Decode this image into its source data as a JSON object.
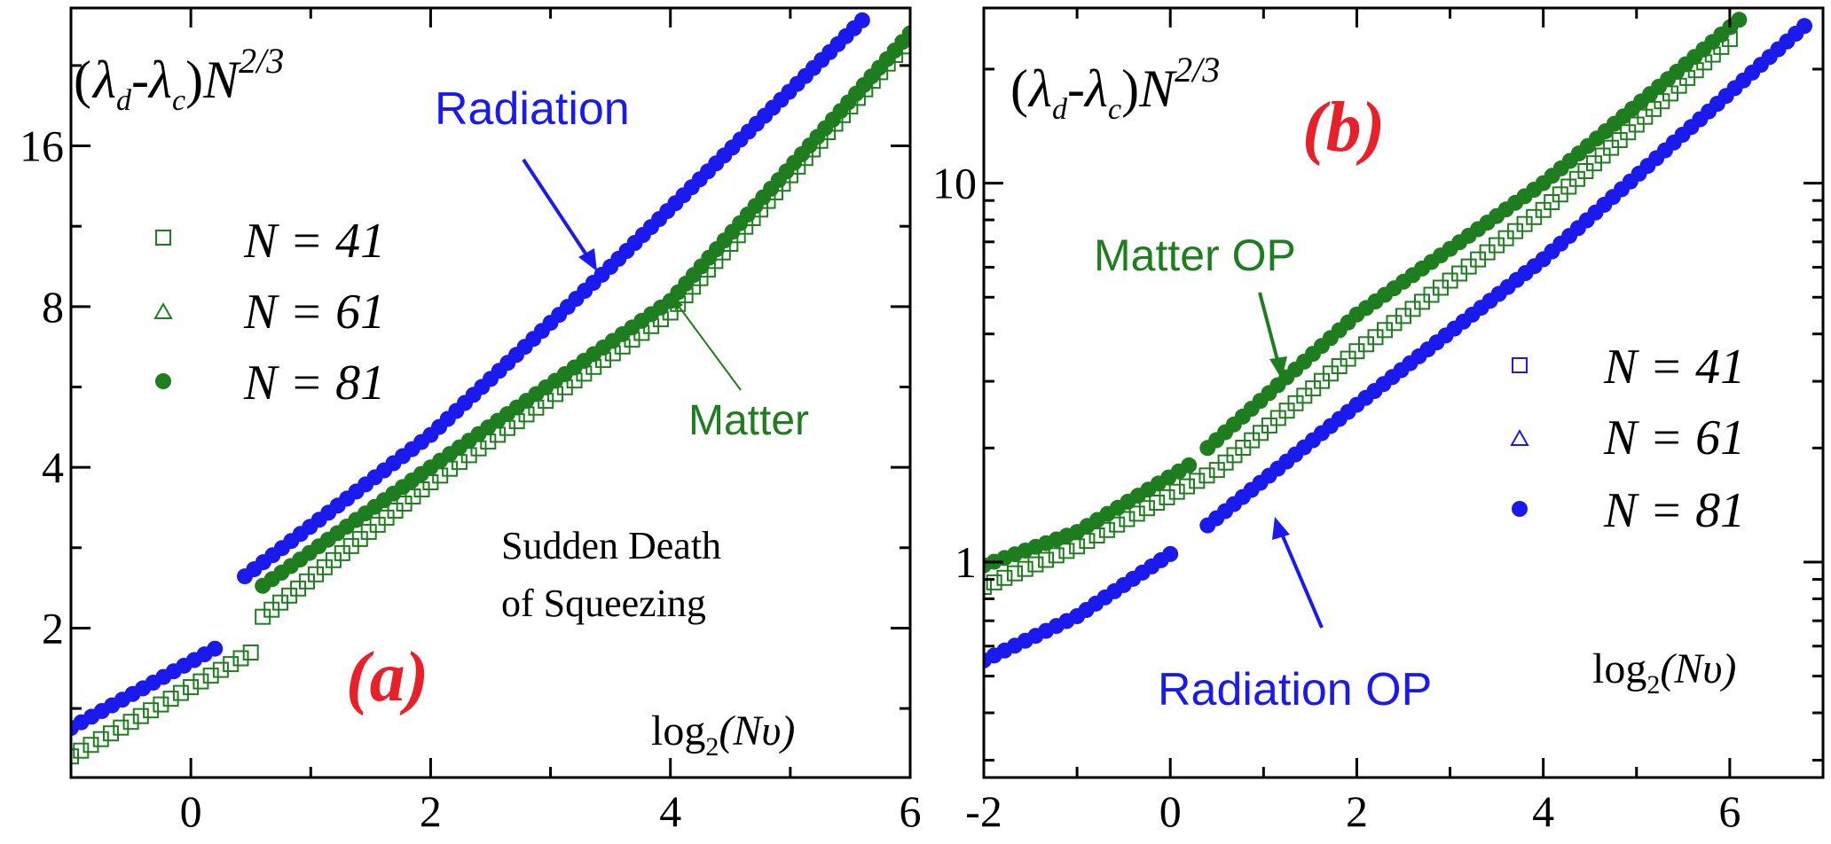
{
  "figure": {
    "colors": {
      "radiation": "#1a1aee",
      "matter": "#1e7d1e",
      "panel_label": "#e8202a",
      "axis": "#000000"
    }
  },
  "chart_data": [
    {
      "type": "scatter",
      "panel_label": "(a)",
      "y_scale": "log2",
      "xlim": [
        -1,
        6
      ],
      "ylim": [
        1.05,
        29
      ],
      "x_ticks": [
        0,
        2,
        4,
        6
      ],
      "x_tick_labels": [
        "0",
        "2",
        "4",
        "6"
      ],
      "y_ticks": [
        2,
        4,
        8,
        16
      ],
      "y_tick_labels": [
        "2",
        "4",
        "8",
        "16"
      ],
      "ylabel": {
        "lambda": "λ",
        "sub_d": "d",
        "sub_c": "c",
        "minus": "-",
        "N": "N",
        "exp": "2/3"
      },
      "xlabel": {
        "log": "log",
        "sub": "2",
        "arg": "(Nυ)"
      },
      "legend": {
        "placement": "top-left",
        "entries": [
          {
            "marker": "open-square",
            "color": "#1e7d1e",
            "label": "N = 41"
          },
          {
            "marker": "open-triangle",
            "color": "#1e7d1e",
            "label": "N = 61"
          },
          {
            "marker": "filled-circle",
            "color": "#1e7d1e",
            "label": "N = 81"
          }
        ]
      },
      "annotations": [
        {
          "text": "Radiation",
          "color": "#1a1aee"
        },
        {
          "text": "Matter",
          "color": "#1e7d1e"
        },
        {
          "text": "Sudden Death",
          "color": "#000000"
        },
        {
          "text": "of Squeezing",
          "color": "#000000"
        }
      ],
      "series": [
        {
          "name": "Radiation",
          "color": "#1a1aee",
          "marker": "filled-circle",
          "segments": [
            {
              "x": [
                -1.0,
                0.2
              ],
              "y": [
                1.3,
                1.83
              ]
            },
            {
              "x": [
                0.45,
                2.0,
                3.5,
                5.6
              ],
              "y": [
                2.5,
                4.6,
                9.5,
                27.5
              ]
            }
          ]
        },
        {
          "name": "Matter",
          "color": "#1e7d1e",
          "marker": "filled-circle",
          "segments": [
            {
              "x": [
                0.6,
                2.0,
                4.0,
                6.0
              ],
              "y": [
                2.4,
                4.0,
                8.2,
                26.0
              ]
            }
          ]
        },
        {
          "name": "Matter N=41",
          "color": "#1e7d1e",
          "marker": "open-square",
          "segments": [
            {
              "x": [
                -1.0,
                0.0,
                0.5
              ],
              "y": [
                1.15,
                1.55,
                1.8
              ]
            },
            {
              "x": [
                0.6,
                2.0,
                4.0,
                6.0
              ],
              "y": [
                2.1,
                3.75,
                7.8,
                25.5
              ]
            }
          ]
        }
      ]
    },
    {
      "type": "scatter",
      "panel_label": "(b)",
      "y_scale": "log10",
      "xlim": [
        -2,
        7
      ],
      "ylim": [
        0.27,
        29
      ],
      "x_ticks": [
        -2,
        0,
        2,
        4,
        6
      ],
      "x_tick_labels": [
        "-2",
        "0",
        "2",
        "4",
        "6"
      ],
      "y_ticks": [
        1,
        10
      ],
      "y_tick_labels": [
        "1",
        "10"
      ],
      "ylabel": {
        "lambda": "λ",
        "sub_d": "d",
        "sub_c": "c",
        "minus": "-",
        "N": "N",
        "exp": "2/3"
      },
      "xlabel": {
        "log": "log",
        "sub": "2",
        "arg": "(Nυ)"
      },
      "legend": {
        "placement": "right",
        "entries": [
          {
            "marker": "open-square",
            "color": "#1a1aee",
            "label": "N = 41"
          },
          {
            "marker": "open-triangle",
            "color": "#1a1aee",
            "label": "N = 61"
          },
          {
            "marker": "filled-circle",
            "color": "#1a1aee",
            "label": "N = 81"
          }
        ]
      },
      "annotations": [
        {
          "text": "Matter OP",
          "color": "#1e7d1e"
        },
        {
          "text": "Radiation OP",
          "color": "#1a1aee"
        }
      ],
      "series": [
        {
          "name": "Matter OP",
          "color": "#1e7d1e",
          "marker": "filled-circle",
          "segments": [
            {
              "x": [
                -2.0,
                -1.0,
                0.2
              ],
              "y": [
                0.98,
                1.2,
                1.8
              ]
            },
            {
              "x": [
                0.4,
                2.0,
                4.0,
                6.1
              ],
              "y": [
                2.0,
                4.5,
                10.0,
                27.0
              ]
            }
          ]
        },
        {
          "name": "Matter OP N=41",
          "color": "#1e7d1e",
          "marker": "open-square",
          "segments": [
            {
              "x": [
                -2.0,
                -1.0,
                0.5,
                2.0,
                4.0,
                6.0
              ],
              "y": [
                0.86,
                1.1,
                1.75,
                3.6,
                8.5,
                24.0
              ]
            }
          ]
        },
        {
          "name": "Radiation OP",
          "color": "#1a1aee",
          "marker": "filled-circle",
          "segments": [
            {
              "x": [
                -2.0,
                -1.0,
                0.0
              ],
              "y": [
                0.55,
                0.72,
                1.05
              ]
            },
            {
              "x": [
                0.4,
                2.0,
                4.0,
                6.8
              ],
              "y": [
                1.25,
                2.6,
                6.3,
                26.0
              ]
            }
          ]
        }
      ]
    }
  ]
}
